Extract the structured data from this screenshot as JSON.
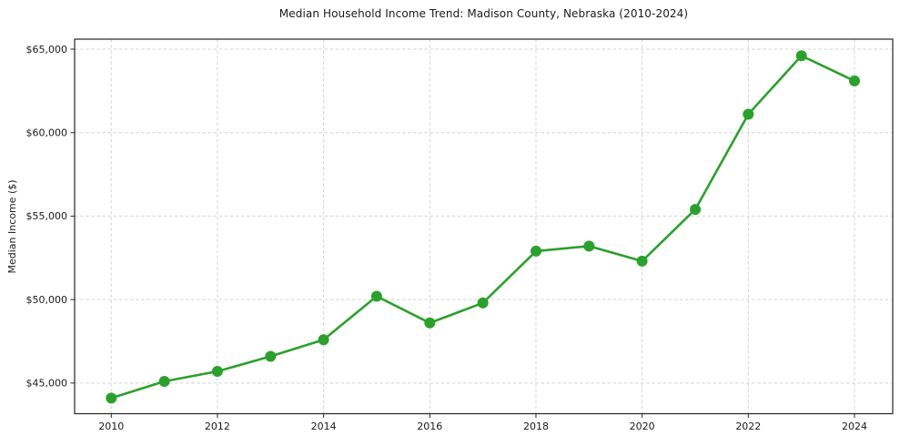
{
  "chart_data": {
    "type": "line",
    "title": "Median Household Income Trend: Madison County, Nebraska (2010-2024)",
    "xlabel": "",
    "ylabel": "Median Income ($)",
    "x": [
      2010,
      2011,
      2012,
      2013,
      2014,
      2015,
      2016,
      2017,
      2018,
      2019,
      2020,
      2021,
      2022,
      2023,
      2024
    ],
    "values": [
      44100,
      45100,
      45700,
      46600,
      47600,
      50200,
      48600,
      49800,
      52900,
      53200,
      52300,
      55400,
      61100,
      64600,
      63100
    ],
    "series_name": "Median Household Income",
    "x_ticks": [
      2010,
      2012,
      2014,
      2016,
      2018,
      2020,
      2022,
      2024
    ],
    "y_ticks": [
      45000,
      50000,
      55000,
      60000,
      65000
    ],
    "y_tick_labels": [
      "$45,000",
      "$50,000",
      "$55,000",
      "$60,000",
      "$65,000"
    ],
    "xlim": [
      2009.31,
      2024.72
    ],
    "ylim": [
      43165,
      65600
    ],
    "grid": true,
    "grid_style": "dashed",
    "legend": "none",
    "line_color": "#2ca02c",
    "marker": "circle",
    "grid_color": "#d4d4d4",
    "spine_color": "#262626",
    "text_color": "#1a1a1a",
    "background_color": "#ffffff"
  }
}
